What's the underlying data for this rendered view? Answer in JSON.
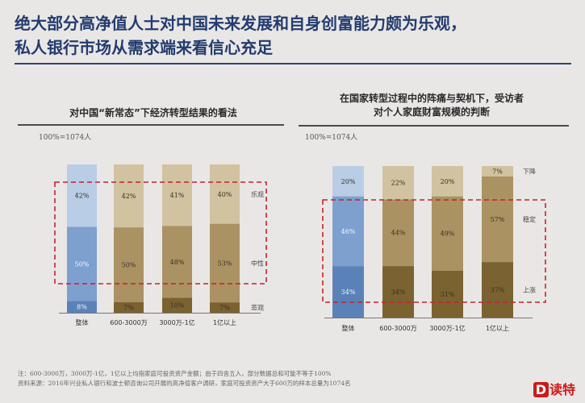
{
  "headline": {
    "line1": "绝大部分高净值人士对中国未来发展和自身创富能力颇为乐观，",
    "line2": "私人银行市场从需求端来看信心充足"
  },
  "footnotes": {
    "note1": "注：600-3000万，3000万-1亿，1亿以上均指家庭可投资资产金额；由于四舍五入，部分数据总和可能不等于100%",
    "note2": "资料来源：2016年兴业私人银行和波士顿咨询公司开展的高净值客户调研，家庭可投资资产大于600万的样本总量为1074名"
  },
  "logo": {
    "mark": "D",
    "text": "读特"
  },
  "chart_data": [
    {
      "type": "bar",
      "stacked": true,
      "title": "对中国“新常态”下经济转型结果的看法",
      "base_note": "100%=1074人",
      "categories": [
        "整体",
        "600-3000万",
        "3000万-1亿",
        "1亿以上"
      ],
      "series": [
        {
          "name": "悲观",
          "values": [
            8,
            7,
            10,
            7
          ]
        },
        {
          "name": "中性",
          "values": [
            50,
            50,
            48,
            53
          ]
        },
        {
          "name": "乐观",
          "values": [
            42,
            42,
            41,
            40
          ]
        }
      ],
      "ylim": [
        0,
        100
      ],
      "highlight": "中性"
    },
    {
      "type": "bar",
      "stacked": true,
      "title_line1": "在国家转型过程中的阵痛与契机下，受访者",
      "title_line2": "对个人家庭财富规模的判断",
      "base_note": "100%=1074人",
      "categories": [
        "整体",
        "600-3000万",
        "3000万-1亿",
        "1亿以上"
      ],
      "series": [
        {
          "name": "上涨",
          "values": [
            34,
            34,
            31,
            37
          ]
        },
        {
          "name": "稳定",
          "values": [
            46,
            44,
            49,
            57
          ]
        },
        {
          "name": "下降",
          "values": [
            20,
            22,
            20,
            7
          ]
        }
      ],
      "ylim": [
        0,
        100
      ],
      "highlight": "稳定"
    }
  ],
  "colors": {
    "overall": [
      "#5b82b8",
      "#7ea0cf",
      "#b9cde6"
    ],
    "segments": [
      "#7a6231",
      "#ab9262",
      "#d1c2a0"
    ],
    "highlight_box": "#c8202a"
  }
}
